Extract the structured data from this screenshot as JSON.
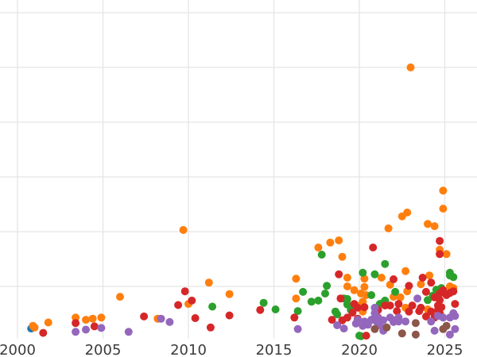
{
  "colors": {
    "background": "#ffffff",
    "grid": "#e5e5e5",
    "tick_label": "#3b3b3b",
    "blue": "#1f77b4",
    "orange": "#ff7f0e",
    "green": "#2ca02c",
    "red": "#d62728",
    "purple": "#9467bd",
    "brown": "#8c564b"
  },
  "chart_data": {
    "type": "scatter",
    "title": "",
    "xlabel": "",
    "ylabel": "",
    "grid": true,
    "legend_position": "none",
    "marker_diameter_px": 10,
    "x_tick_labels": [
      "2000",
      "2005",
      "2010",
      "2015",
      "2020",
      "2025"
    ],
    "x_tick_years": [
      2000,
      2005,
      2010,
      2015,
      2020,
      2025
    ],
    "y_gridline_values": [
      1,
      2,
      3,
      4,
      5,
      6
    ],
    "y_tick_labels_visible": false,
    "x_domain": [
      1999.0,
      2026.9
    ],
    "y_domain": [
      0.07,
      6.23
    ],
    "series": [
      {
        "name": "blue",
        "color_key": "blue",
        "points": [
          [
            2000.8,
            0.23
          ]
        ]
      },
      {
        "name": "orange",
        "color_key": "orange",
        "points": [
          [
            2000.9,
            0.28
          ],
          [
            2001.0,
            0.25
          ],
          [
            2001.8,
            0.34
          ],
          [
            2003.4,
            0.43
          ],
          [
            2004.0,
            0.39
          ],
          [
            2004.4,
            0.41
          ],
          [
            2004.9,
            0.43
          ],
          [
            2006.0,
            0.81
          ],
          [
            2008.2,
            0.41
          ],
          [
            2009.7,
            2.03
          ],
          [
            2010.0,
            0.68
          ],
          [
            2011.2,
            1.07
          ],
          [
            2012.4,
            0.86
          ],
          [
            2016.3,
            1.14
          ],
          [
            2016.3,
            0.78
          ],
          [
            2017.6,
            1.71
          ],
          [
            2018.3,
            1.8
          ],
          [
            2018.8,
            1.84
          ],
          [
            2019.0,
            1.54
          ],
          [
            2019.3,
            1.16
          ],
          [
            2019.3,
            1.0
          ],
          [
            2019.7,
            0.93
          ],
          [
            2020.0,
            0.64
          ],
          [
            2020.1,
            0.87
          ],
          [
            2020.2,
            0.54
          ],
          [
            2020.2,
            0.72
          ],
          [
            2020.3,
            1.14
          ],
          [
            2020.3,
            0.99
          ],
          [
            2020.4,
            0.84
          ],
          [
            2021.3,
            1.16
          ],
          [
            2021.7,
            2.06
          ],
          [
            2021.8,
            1.03
          ],
          [
            2022.0,
            0.81
          ],
          [
            2022.4,
            0.8
          ],
          [
            2022.5,
            2.28
          ],
          [
            2022.7,
            1.28
          ],
          [
            2022.7,
            0.61
          ],
          [
            2022.8,
            2.35
          ],
          [
            2022.8,
            0.91
          ],
          [
            2023.0,
            5.0
          ],
          [
            2023.6,
            1.04
          ],
          [
            2024.0,
            2.14
          ],
          [
            2024.0,
            0.58
          ],
          [
            2024.1,
            1.2
          ],
          [
            2024.4,
            2.1
          ],
          [
            2024.7,
            1.67
          ],
          [
            2024.9,
            2.75
          ],
          [
            2024.9,
            2.42
          ],
          [
            2025.1,
            1.59
          ],
          [
            2025.3,
            1.0
          ],
          [
            2025.5,
            0.97
          ]
        ]
      },
      {
        "name": "green",
        "color_key": "green",
        "points": [
          [
            2011.4,
            0.63
          ],
          [
            2014.4,
            0.7
          ],
          [
            2015.1,
            0.58
          ],
          [
            2016.4,
            0.55
          ],
          [
            2016.7,
            0.9
          ],
          [
            2017.2,
            0.72
          ],
          [
            2017.6,
            0.74
          ],
          [
            2017.8,
            1.58
          ],
          [
            2018.0,
            0.87
          ],
          [
            2018.1,
            1.01
          ],
          [
            2018.6,
            0.54
          ],
          [
            2018.7,
            0.49
          ],
          [
            2019.1,
            0.78
          ],
          [
            2019.3,
            0.77
          ],
          [
            2019.3,
            0.67
          ],
          [
            2019.5,
            0.57
          ],
          [
            2020.0,
            0.1
          ],
          [
            2020.1,
            0.09
          ],
          [
            2020.2,
            1.25
          ],
          [
            2020.7,
            0.39
          ],
          [
            2020.7,
            0.84
          ],
          [
            2020.9,
            1.22
          ],
          [
            2021.2,
            0.68
          ],
          [
            2021.4,
            0.7
          ],
          [
            2021.5,
            1.41
          ],
          [
            2021.5,
            0.74
          ],
          [
            2022.1,
            0.9
          ],
          [
            2024.0,
            0.75
          ],
          [
            2024.3,
            0.83
          ],
          [
            2024.5,
            0.94
          ],
          [
            2024.8,
            0.97
          ],
          [
            2025.3,
            1.2
          ],
          [
            2025.3,
            1.25
          ],
          [
            2025.5,
            1.17
          ]
        ]
      },
      {
        "name": "red",
        "color_key": "red",
        "points": [
          [
            2001.5,
            0.15
          ],
          [
            2003.4,
            0.33
          ],
          [
            2004.5,
            0.27
          ],
          [
            2007.4,
            0.45
          ],
          [
            2009.4,
            0.66
          ],
          [
            2009.8,
            0.91
          ],
          [
            2010.2,
            0.74
          ],
          [
            2010.4,
            0.42
          ],
          [
            2011.3,
            0.25
          ],
          [
            2012.4,
            0.47
          ],
          [
            2014.2,
            0.57
          ],
          [
            2016.2,
            0.43
          ],
          [
            2018.4,
            0.39
          ],
          [
            2018.8,
            1.22
          ],
          [
            2018.9,
            0.78
          ],
          [
            2019.0,
            0.38
          ],
          [
            2019.3,
            0.43
          ],
          [
            2019.6,
            0.52
          ],
          [
            2019.7,
            0.68
          ],
          [
            2019.9,
            0.61
          ],
          [
            2019.9,
            0.41
          ],
          [
            2020.3,
            0.62
          ],
          [
            2020.4,
            0.1
          ],
          [
            2020.8,
            1.71
          ],
          [
            2021.1,
            0.57
          ],
          [
            2021.1,
            0.43
          ],
          [
            2021.5,
            0.65
          ],
          [
            2021.8,
            0.65
          ],
          [
            2022.0,
            1.13
          ],
          [
            2022.2,
            0.55
          ],
          [
            2022.3,
            0.68
          ],
          [
            2022.9,
            1.01
          ],
          [
            2022.9,
            0.54
          ],
          [
            2023.1,
            0.65
          ],
          [
            2023.5,
            0.55
          ],
          [
            2023.6,
            0.61
          ],
          [
            2023.7,
            1.16
          ],
          [
            2023.9,
            0.9
          ],
          [
            2023.9,
            0.45
          ],
          [
            2024.2,
            1.07
          ],
          [
            2024.2,
            0.54
          ],
          [
            2024.4,
            0.8
          ],
          [
            2024.4,
            0.43
          ],
          [
            2024.6,
            0.65
          ],
          [
            2024.6,
            0.57
          ],
          [
            2024.7,
            1.83
          ],
          [
            2024.7,
            1.59
          ],
          [
            2024.7,
            0.87
          ],
          [
            2024.7,
            0.75
          ],
          [
            2024.7,
            0.51
          ],
          [
            2024.8,
            0.62
          ],
          [
            2024.9,
            0.93
          ],
          [
            2025.1,
            0.84
          ],
          [
            2025.3,
            0.88
          ],
          [
            2025.5,
            0.91
          ],
          [
            2025.6,
            0.68
          ]
        ]
      },
      {
        "name": "purple",
        "color_key": "purple",
        "points": [
          [
            2003.4,
            0.17
          ],
          [
            2004.0,
            0.21
          ],
          [
            2004.9,
            0.24
          ],
          [
            2006.5,
            0.17
          ],
          [
            2008.4,
            0.41
          ],
          [
            2008.9,
            0.35
          ],
          [
            2016.4,
            0.22
          ],
          [
            2018.7,
            0.29
          ],
          [
            2019.1,
            0.23
          ],
          [
            2019.8,
            0.32
          ],
          [
            2019.9,
            0.39
          ],
          [
            2020.2,
            0.28
          ],
          [
            2020.3,
            0.36
          ],
          [
            2020.5,
            0.3
          ],
          [
            2020.7,
            0.39
          ],
          [
            2020.9,
            0.61
          ],
          [
            2020.9,
            0.51
          ],
          [
            2021.0,
            0.36
          ],
          [
            2021.1,
            0.42
          ],
          [
            2021.2,
            0.29
          ],
          [
            2021.4,
            0.38
          ],
          [
            2021.4,
            0.19
          ],
          [
            2021.8,
            0.43
          ],
          [
            2022.0,
            0.35
          ],
          [
            2022.1,
            0.38
          ],
          [
            2022.3,
            0.43
          ],
          [
            2022.3,
            0.36
          ],
          [
            2022.7,
            0.36
          ],
          [
            2023.4,
            0.78
          ],
          [
            2024.2,
            0.36
          ],
          [
            2024.4,
            0.19
          ],
          [
            2024.6,
            0.46
          ],
          [
            2024.9,
            0.43
          ],
          [
            2025.3,
            0.43
          ],
          [
            2025.3,
            0.12
          ],
          [
            2025.5,
            0.51
          ],
          [
            2025.6,
            0.46
          ],
          [
            2025.6,
            0.22
          ]
        ]
      },
      {
        "name": "brown",
        "color_key": "brown",
        "points": [
          [
            2020.9,
            0.22
          ],
          [
            2021.6,
            0.25
          ],
          [
            2022.5,
            0.14
          ],
          [
            2023.3,
            0.12
          ],
          [
            2023.3,
            0.33
          ],
          [
            2024.9,
            0.22
          ],
          [
            2025.1,
            0.28
          ]
        ]
      }
    ]
  }
}
